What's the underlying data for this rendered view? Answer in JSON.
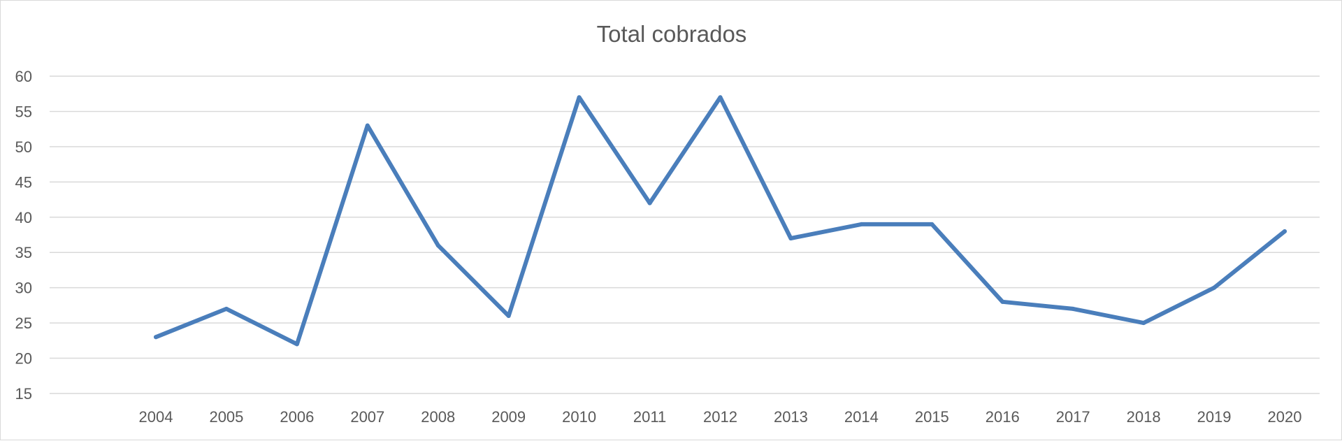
{
  "chart_data": {
    "type": "line",
    "title": "Total cobrados",
    "xlabel": "",
    "ylabel": "",
    "categories": [
      "2004",
      "2005",
      "2006",
      "2007",
      "2008",
      "2009",
      "2010",
      "2011",
      "2012",
      "2013",
      "2014",
      "2015",
      "2016",
      "2017",
      "2018",
      "2019",
      "2020"
    ],
    "series": [
      {
        "values": [
          23,
          27,
          22,
          53,
          36,
          26,
          57,
          42,
          57,
          37,
          39,
          39,
          28,
          27,
          25,
          30,
          38
        ],
        "color": "#4a7ebb"
      }
    ],
    "ylim": [
      15,
      60
    ],
    "yticks": [
      15,
      20,
      25,
      30,
      35,
      40,
      45,
      50,
      55,
      60
    ],
    "grid": true,
    "legend": "none"
  }
}
